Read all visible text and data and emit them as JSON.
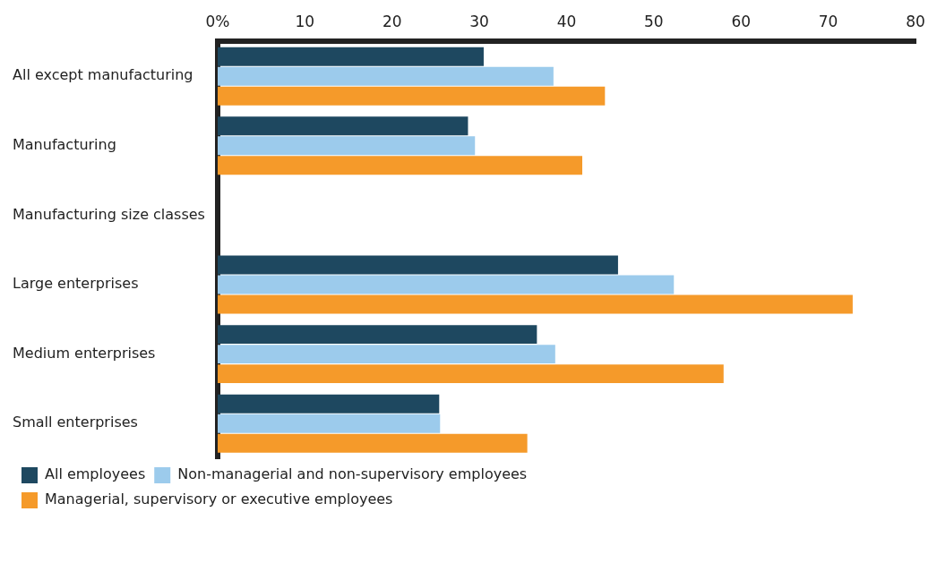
{
  "chart_data": {
    "type": "bar",
    "orientation": "horizontal",
    "categories": [
      "All except manufacturing",
      "Manufacturing",
      "Manufacturing size classes",
      "Large enterprises",
      "Medium enterprises",
      "Small enterprises"
    ],
    "series": [
      {
        "name": "All employees",
        "color": "#1e4860",
        "values": [
          30.5,
          28.7,
          null,
          45.9,
          36.6,
          25.4
        ]
      },
      {
        "name": "Non-managerial and non-supervisory employees",
        "color": "#9ccbec",
        "values": [
          38.5,
          29.5,
          null,
          52.3,
          38.7,
          25.5
        ]
      },
      {
        "name": "Managerial, supervisory or executive employees",
        "color": "#f59a2a",
        "values": [
          44.4,
          41.8,
          null,
          72.8,
          58.0,
          35.5
        ]
      }
    ],
    "xlim": [
      0,
      80
    ],
    "xticks": [
      {
        "value": 0,
        "label": "0%"
      },
      10,
      20,
      30,
      40,
      50,
      60,
      70,
      80
    ],
    "grid": false,
    "legend": "bottom left"
  }
}
